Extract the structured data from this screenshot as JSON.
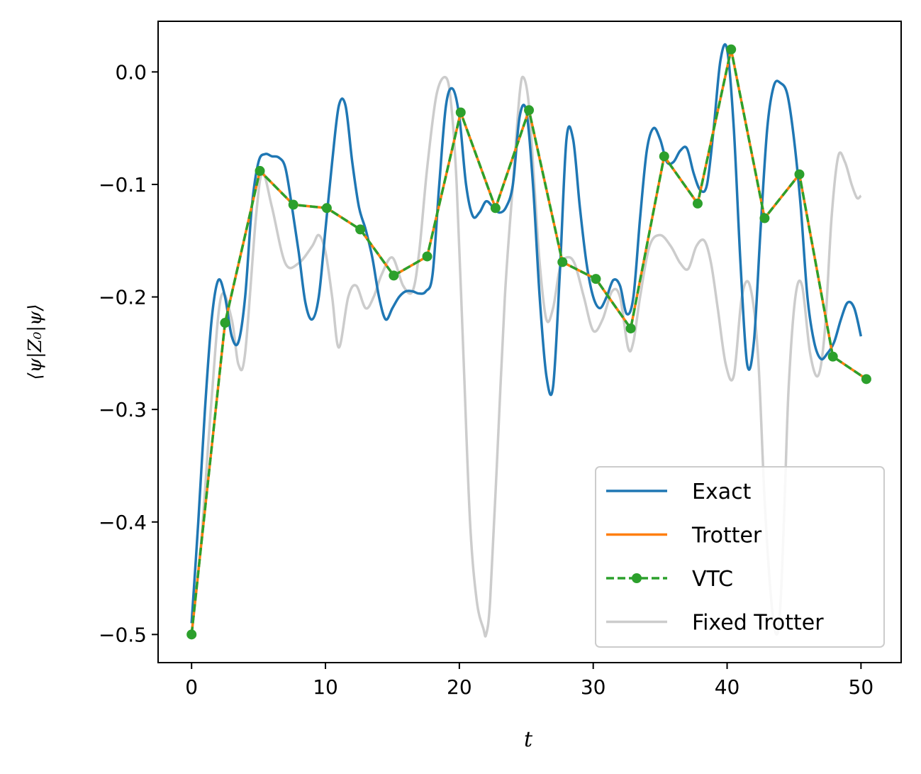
{
  "chart_data": {
    "type": "line",
    "xlabel": "t",
    "ylabel": "⟨ψ|Z₀|ψ⟩",
    "xlim": [
      -2.5,
      53
    ],
    "ylim": [
      -0.525,
      0.045
    ],
    "x_ticks": [
      0,
      10,
      20,
      30,
      40,
      50
    ],
    "y_ticks": [
      0.0,
      -0.1,
      -0.2,
      -0.3,
      -0.4,
      -0.5
    ],
    "x_tick_labels": [
      "0",
      "10",
      "20",
      "30",
      "40",
      "50"
    ],
    "y_tick_labels": [
      "0.0",
      "−0.1",
      "−0.2",
      "−0.3",
      "−0.4",
      "−0.5"
    ],
    "grid": false,
    "legend_position": "lower-right",
    "series": [
      {
        "name": "Fixed Trotter",
        "color": "#cccccc",
        "style": "solid",
        "x": [
          0,
          0.7,
          1.5,
          2.2,
          3.0,
          3.5,
          4.0,
          4.8,
          5.3,
          6.0,
          7.0,
          8.0,
          9.0,
          9.5,
          10.0,
          10.5,
          11.0,
          11.7,
          12.3,
          13.0,
          13.6,
          14.2,
          15.0,
          15.8,
          16.5,
          17.0,
          17.6,
          18.3,
          19.0,
          19.4,
          19.8,
          20.3,
          20.8,
          21.3,
          21.8,
          22.0,
          22.3,
          22.8,
          23.4,
          24.0,
          24.5,
          24.8,
          25.2,
          25.6,
          26.0,
          26.5,
          27.0,
          27.5,
          28.0,
          28.6,
          29.3,
          30.0,
          30.7,
          31.4,
          32.0,
          32.6,
          33.0,
          33.5,
          34.2,
          35.0,
          35.8,
          36.5,
          37.1,
          37.7,
          38.3,
          38.8,
          39.3,
          39.9,
          40.5,
          41.1,
          41.7,
          42.3,
          42.8,
          43.3,
          43.7,
          44.0,
          44.3,
          44.6,
          45.1,
          45.6,
          46.2,
          46.8,
          47.3,
          47.8,
          48.3,
          48.8,
          49.3,
          49.7,
          50.0
        ],
        "y": [
          -0.5,
          -0.42,
          -0.29,
          -0.2,
          -0.22,
          -0.26,
          -0.25,
          -0.13,
          -0.09,
          -0.12,
          -0.17,
          -0.17,
          -0.155,
          -0.145,
          -0.16,
          -0.2,
          -0.245,
          -0.2,
          -0.19,
          -0.21,
          -0.2,
          -0.18,
          -0.165,
          -0.19,
          -0.195,
          -0.16,
          -0.085,
          -0.02,
          -0.005,
          -0.03,
          -0.1,
          -0.25,
          -0.4,
          -0.47,
          -0.495,
          -0.5,
          -0.47,
          -0.35,
          -0.2,
          -0.1,
          -0.02,
          -0.005,
          -0.03,
          -0.1,
          -0.17,
          -0.22,
          -0.21,
          -0.175,
          -0.165,
          -0.17,
          -0.2,
          -0.23,
          -0.22,
          -0.195,
          -0.2,
          -0.245,
          -0.24,
          -0.2,
          -0.155,
          -0.145,
          -0.155,
          -0.17,
          -0.175,
          -0.155,
          -0.15,
          -0.17,
          -0.21,
          -0.26,
          -0.27,
          -0.2,
          -0.19,
          -0.25,
          -0.38,
          -0.47,
          -0.5,
          -0.47,
          -0.38,
          -0.28,
          -0.2,
          -0.19,
          -0.25,
          -0.27,
          -0.23,
          -0.13,
          -0.075,
          -0.08,
          -0.1,
          -0.112,
          -0.11
        ]
      },
      {
        "name": "Exact",
        "color": "#1f77b4",
        "style": "solid",
        "x": [
          0,
          0.5,
          1.0,
          1.5,
          2.0,
          2.5,
          3.0,
          3.5,
          4.0,
          4.5,
          5.0,
          5.5,
          6.0,
          6.5,
          7.0,
          7.5,
          8.0,
          8.5,
          9.0,
          9.5,
          10.0,
          10.5,
          11.0,
          11.5,
          12.0,
          12.5,
          13.0,
          13.5,
          14.0,
          14.5,
          15.0,
          15.5,
          16.0,
          16.5,
          17.0,
          17.5,
          18.0,
          18.5,
          19.0,
          19.5,
          20.0,
          20.5,
          21.0,
          21.5,
          22.0,
          22.5,
          23.0,
          23.5,
          24.0,
          24.5,
          25.0,
          25.5,
          26.0,
          26.5,
          27.0,
          27.5,
          28.0,
          28.5,
          29.0,
          29.5,
          30.0,
          30.5,
          31.0,
          31.5,
          32.0,
          32.5,
          33.0,
          33.5,
          34.0,
          34.5,
          35.0,
          35.5,
          36.0,
          36.5,
          37.0,
          37.5,
          38.0,
          38.5,
          39.0,
          39.5,
          40.0,
          40.5,
          41.0,
          41.5,
          42.0,
          42.5,
          43.0,
          43.5,
          44.0,
          44.5,
          45.0,
          45.5,
          46.0,
          46.5,
          47.0,
          47.5,
          48.0,
          48.5,
          49.0,
          49.5,
          50.0
        ],
        "y": [
          -0.49,
          -0.4,
          -0.3,
          -0.22,
          -0.185,
          -0.2,
          -0.235,
          -0.24,
          -0.2,
          -0.12,
          -0.08,
          -0.073,
          -0.075,
          -0.076,
          -0.085,
          -0.12,
          -0.16,
          -0.205,
          -0.22,
          -0.2,
          -0.14,
          -0.08,
          -0.03,
          -0.03,
          -0.08,
          -0.12,
          -0.14,
          -0.165,
          -0.2,
          -0.22,
          -0.21,
          -0.2,
          -0.195,
          -0.195,
          -0.197,
          -0.195,
          -0.18,
          -0.1,
          -0.03,
          -0.015,
          -0.04,
          -0.1,
          -0.128,
          -0.125,
          -0.115,
          -0.12,
          -0.125,
          -0.12,
          -0.1,
          -0.04,
          -0.035,
          -0.1,
          -0.2,
          -0.27,
          -0.28,
          -0.18,
          -0.06,
          -0.06,
          -0.12,
          -0.17,
          -0.2,
          -0.21,
          -0.2,
          -0.185,
          -0.19,
          -0.215,
          -0.2,
          -0.13,
          -0.07,
          -0.05,
          -0.06,
          -0.08,
          -0.08,
          -0.07,
          -0.068,
          -0.09,
          -0.105,
          -0.1,
          -0.05,
          0.01,
          0.02,
          -0.05,
          -0.17,
          -0.26,
          -0.24,
          -0.14,
          -0.05,
          -0.012,
          -0.01,
          -0.02,
          -0.06,
          -0.12,
          -0.2,
          -0.24,
          -0.255,
          -0.25,
          -0.24,
          -0.22,
          -0.205,
          -0.21,
          -0.235
        ]
      },
      {
        "name": "Trotter",
        "color": "#ff7f0e",
        "style": "solid",
        "x": [
          0,
          2.5,
          5.1,
          7.6,
          10.1,
          12.6,
          15.1,
          17.6,
          20.1,
          22.7,
          25.2,
          27.7,
          30.2,
          32.8,
          35.3,
          37.8,
          40.3,
          42.8,
          45.4,
          47.9,
          50.4
        ],
        "y": [
          -0.5,
          -0.223,
          -0.088,
          -0.118,
          -0.121,
          -0.14,
          -0.181,
          -0.164,
          -0.036,
          -0.121,
          -0.034,
          -0.169,
          -0.184,
          -0.228,
          -0.075,
          -0.117,
          0.02,
          -0.13,
          -0.091,
          -0.253,
          -0.273
        ]
      },
      {
        "name": "VTC",
        "color": "#2ca02c",
        "style": "dashed",
        "marker": "circle",
        "x": [
          0,
          2.5,
          5.1,
          7.6,
          10.1,
          12.6,
          15.1,
          17.6,
          20.1,
          22.7,
          25.2,
          27.7,
          30.2,
          32.8,
          35.3,
          37.8,
          40.3,
          42.8,
          45.4,
          47.9,
          50.4
        ],
        "y": [
          -0.5,
          -0.223,
          -0.088,
          -0.118,
          -0.121,
          -0.14,
          -0.181,
          -0.164,
          -0.036,
          -0.121,
          -0.034,
          -0.169,
          -0.184,
          -0.228,
          -0.075,
          -0.117,
          0.02,
          -0.13,
          -0.091,
          -0.253,
          -0.273
        ]
      }
    ],
    "legend_order": [
      "Exact",
      "Trotter",
      "VTC",
      "Fixed Trotter"
    ]
  }
}
